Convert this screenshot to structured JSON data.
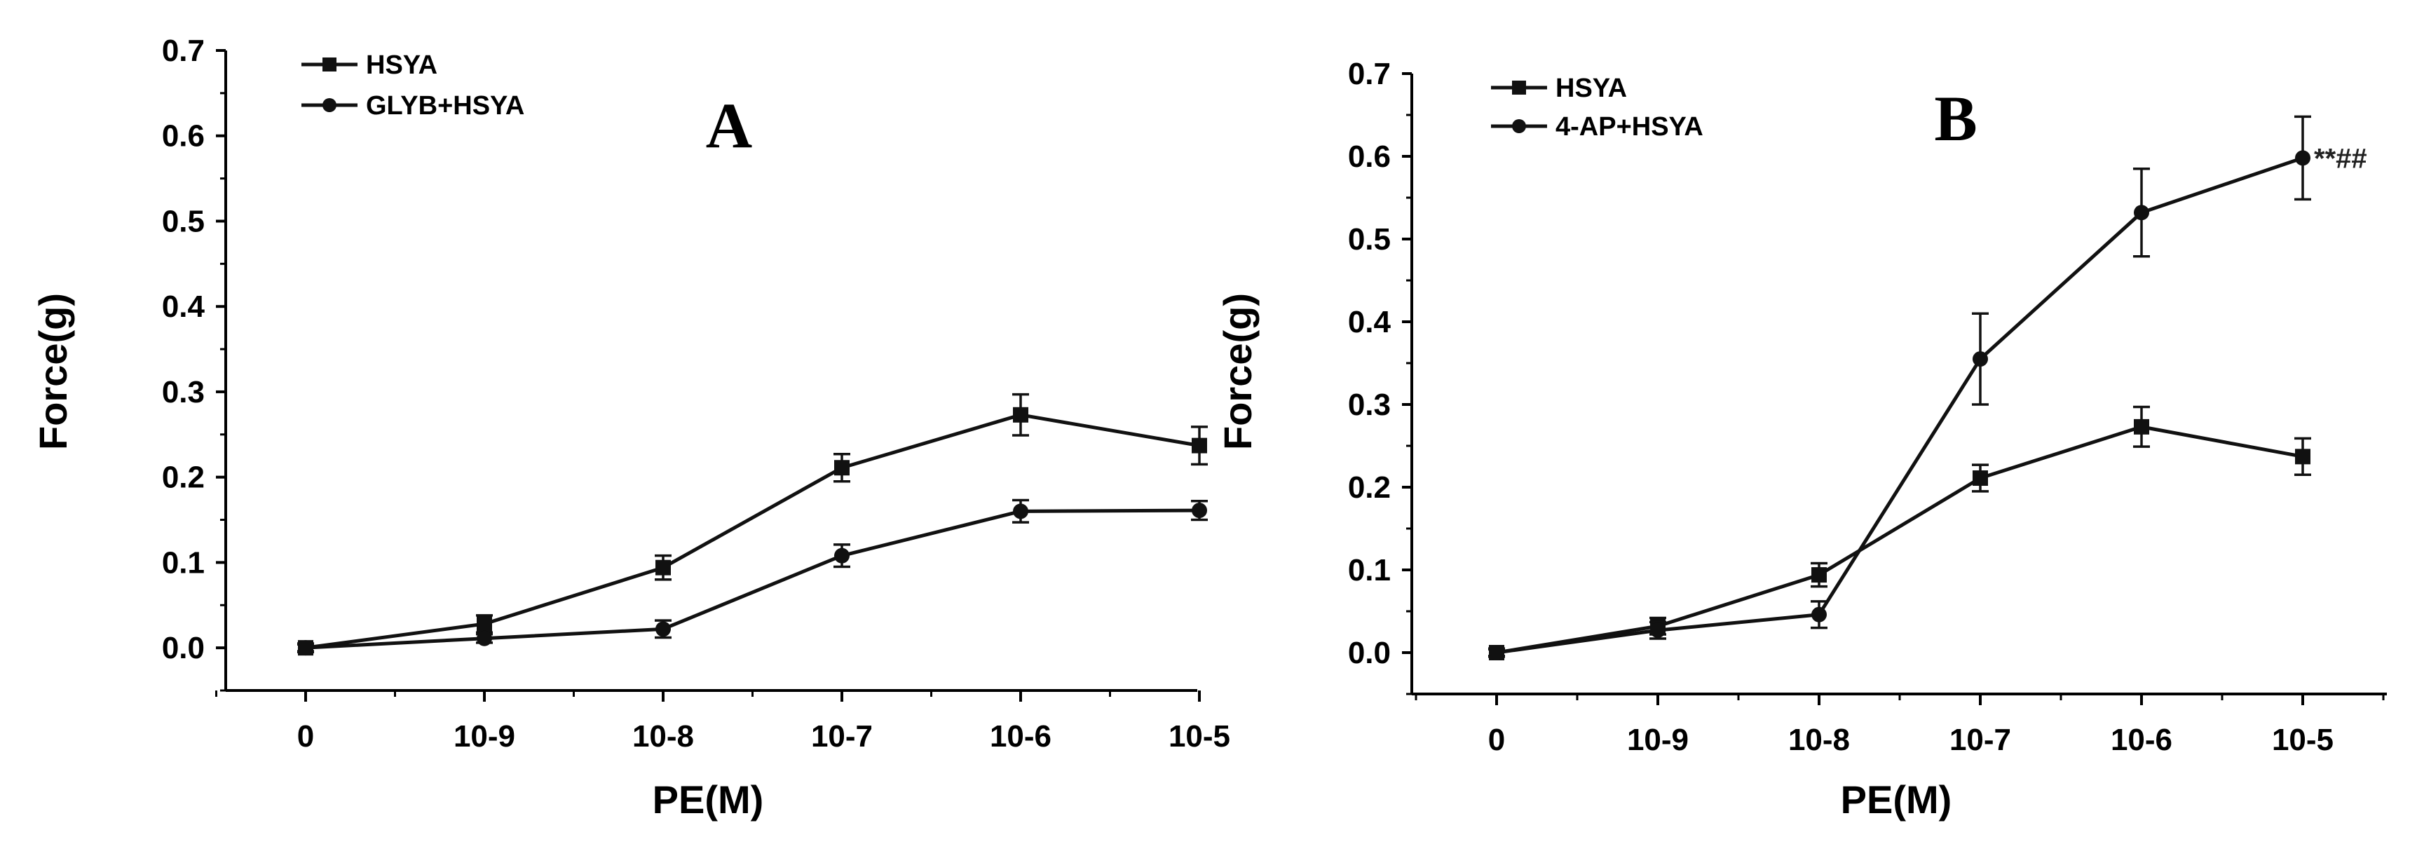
{
  "chart_data": [
    {
      "type": "line",
      "panel": "A",
      "xlabel": "PE(M)",
      "ylabel": "Force(g)",
      "categories": [
        "0",
        "10-9",
        "10-8",
        "10-7",
        "10-6",
        "10-5"
      ],
      "yticks": [
        "0.0",
        "0.1",
        "0.2",
        "0.3",
        "0.4",
        "0.5",
        "0.6",
        "0.7"
      ],
      "ylim": [
        -0.05,
        0.7
      ],
      "grid": false,
      "legend_position": "top-left",
      "series": [
        {
          "name": "HSYA",
          "marker": "square",
          "values": [
            0.0,
            0.028,
            0.094,
            0.211,
            0.273,
            0.237
          ],
          "errors": [
            0.005,
            0.01,
            0.014,
            0.016,
            0.024,
            0.022
          ]
        },
        {
          "name": "GLYB+HSYA",
          "marker": "circle",
          "values": [
            0.0,
            0.011,
            0.022,
            0.108,
            0.16,
            0.161
          ],
          "errors": [
            0.004,
            0.005,
            0.01,
            0.013,
            0.013,
            0.011
          ]
        }
      ],
      "annotations": []
    },
    {
      "type": "line",
      "panel": "B",
      "xlabel": "PE(M)",
      "ylabel": "Force(g)",
      "categories": [
        "0",
        "10-9",
        "10-8",
        "10-7",
        "10-6",
        "10-5"
      ],
      "yticks": [
        "0.0",
        "0.1",
        "0.2",
        "0.3",
        "0.4",
        "0.5",
        "0.6",
        "0.7"
      ],
      "ylim": [
        -0.05,
        0.7
      ],
      "grid": false,
      "legend_position": "top-left",
      "series": [
        {
          "name": "HSYA",
          "marker": "square",
          "values": [
            0.0,
            0.032,
            0.094,
            0.211,
            0.273,
            0.237
          ],
          "errors": [
            0.005,
            0.01,
            0.014,
            0.016,
            0.024,
            0.022
          ]
        },
        {
          "name": "4-AP+HSYA",
          "marker": "circle",
          "values": [
            0.0,
            0.027,
            0.046,
            0.355,
            0.532,
            0.598
          ],
          "errors": [
            0.004,
            0.01,
            0.016,
            0.055,
            0.053,
            0.05
          ]
        }
      ],
      "annotations": [
        {
          "text": "**##",
          "series": 1,
          "index": 5
        }
      ]
    }
  ]
}
